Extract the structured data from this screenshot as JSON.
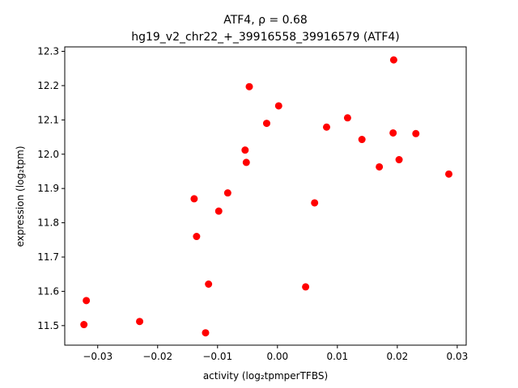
{
  "chart_data": {
    "type": "scatter",
    "title_line1": "ATF4, ρ = 0.68",
    "title_line2": "hg19_v2_chr22_+_39916558_39916579 (ATF4)",
    "xlabel": "activity (log₂tpmperTFBS)",
    "ylabel": "expression (log₂tpm)",
    "xlim": [
      -0.0355,
      0.0315
    ],
    "ylim": [
      11.443,
      12.313
    ],
    "xticks": [
      -0.03,
      -0.02,
      -0.01,
      0.0,
      0.01,
      0.02,
      0.03
    ],
    "xtick_labels": [
      "−0.03",
      "−0.02",
      "−0.01",
      "0.00",
      "0.01",
      "0.02",
      "0.03"
    ],
    "yticks": [
      11.5,
      11.6,
      11.7,
      11.8,
      11.9,
      12.0,
      12.1,
      12.2,
      12.3
    ],
    "ytick_labels": [
      "11.5",
      "11.6",
      "11.7",
      "11.8",
      "11.9",
      "12.0",
      "12.1",
      "12.2",
      "12.3"
    ],
    "grid": false,
    "marker_color": "#ff0000",
    "points": [
      {
        "x": -0.0323,
        "y": 11.503
      },
      {
        "x": -0.0319,
        "y": 11.573
      },
      {
        "x": -0.023,
        "y": 11.512
      },
      {
        "x": -0.0139,
        "y": 11.87
      },
      {
        "x": -0.0135,
        "y": 11.76
      },
      {
        "x": -0.012,
        "y": 11.479
      },
      {
        "x": -0.0115,
        "y": 11.621
      },
      {
        "x": -0.0098,
        "y": 11.834
      },
      {
        "x": -0.0083,
        "y": 11.887
      },
      {
        "x": -0.0054,
        "y": 12.012
      },
      {
        "x": -0.0052,
        "y": 11.976
      },
      {
        "x": -0.0047,
        "y": 12.197
      },
      {
        "x": -0.0018,
        "y": 12.09
      },
      {
        "x": 0.0002,
        "y": 12.141
      },
      {
        "x": 0.0047,
        "y": 11.613
      },
      {
        "x": 0.0062,
        "y": 11.858
      },
      {
        "x": 0.0082,
        "y": 12.079
      },
      {
        "x": 0.0117,
        "y": 12.106
      },
      {
        "x": 0.0141,
        "y": 12.043
      },
      {
        "x": 0.017,
        "y": 11.963
      },
      {
        "x": 0.0193,
        "y": 12.062
      },
      {
        "x": 0.0194,
        "y": 12.275
      },
      {
        "x": 0.0203,
        "y": 11.984
      },
      {
        "x": 0.0231,
        "y": 12.06
      },
      {
        "x": 0.0286,
        "y": 11.942
      }
    ]
  }
}
